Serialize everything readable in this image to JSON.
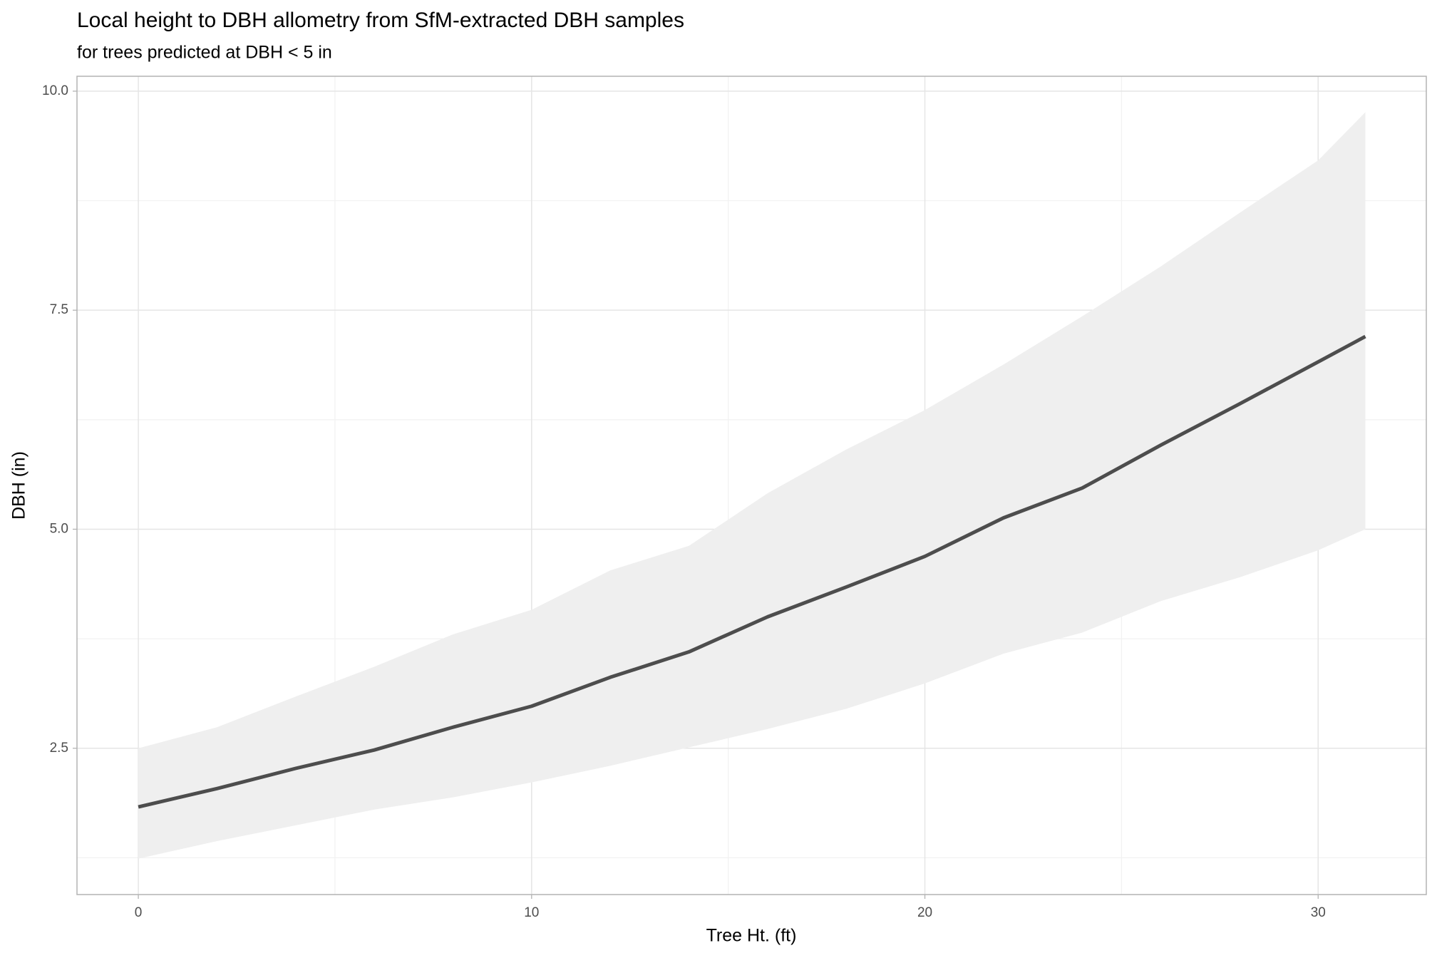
{
  "chart_data": {
    "type": "line",
    "title": "Local height to DBH allometry from SfM-extracted DBH samples",
    "subtitle": "for trees predicted at DBH < 5 in",
    "x_label": "Tree Ht. (ft)",
    "y_label": "DBH (in)",
    "x": [
      0,
      2,
      4,
      6,
      8,
      10,
      12,
      14,
      16,
      18,
      20,
      22,
      24,
      26,
      28,
      30,
      31.2
    ],
    "series": [
      {
        "color": "#4d4d4d",
        "values": [
          1.83,
          2.04,
          2.27,
          2.48,
          2.74,
          2.98,
          3.31,
          3.6,
          4.0,
          4.34,
          4.69,
          5.13,
          5.47,
          5.96,
          6.43,
          6.91,
          7.2
        ]
      }
    ],
    "band": {
      "color": "#efefef",
      "lower": [
        1.24,
        1.44,
        1.62,
        1.8,
        1.94,
        2.11,
        2.3,
        2.51,
        2.72,
        2.95,
        3.24,
        3.58,
        3.82,
        4.18,
        4.45,
        4.76,
        5.0
      ],
      "upper": [
        2.5,
        2.74,
        3.09,
        3.43,
        3.8,
        4.08,
        4.53,
        4.81,
        5.41,
        5.91,
        6.36,
        6.88,
        7.43,
        8.0,
        8.61,
        9.21,
        9.76
      ]
    },
    "xlim": [
      -1.56,
      32.75
    ],
    "ylim": [
      0.83,
      10.17
    ],
    "xticks": [
      0,
      10,
      20,
      30
    ],
    "yticks": [
      2.5,
      {
        "value": 5,
        "label": "5.0"
      },
      7.5,
      {
        "value": 10,
        "label": "10.0"
      }
    ],
    "grid": true,
    "minor_grid": true
  }
}
